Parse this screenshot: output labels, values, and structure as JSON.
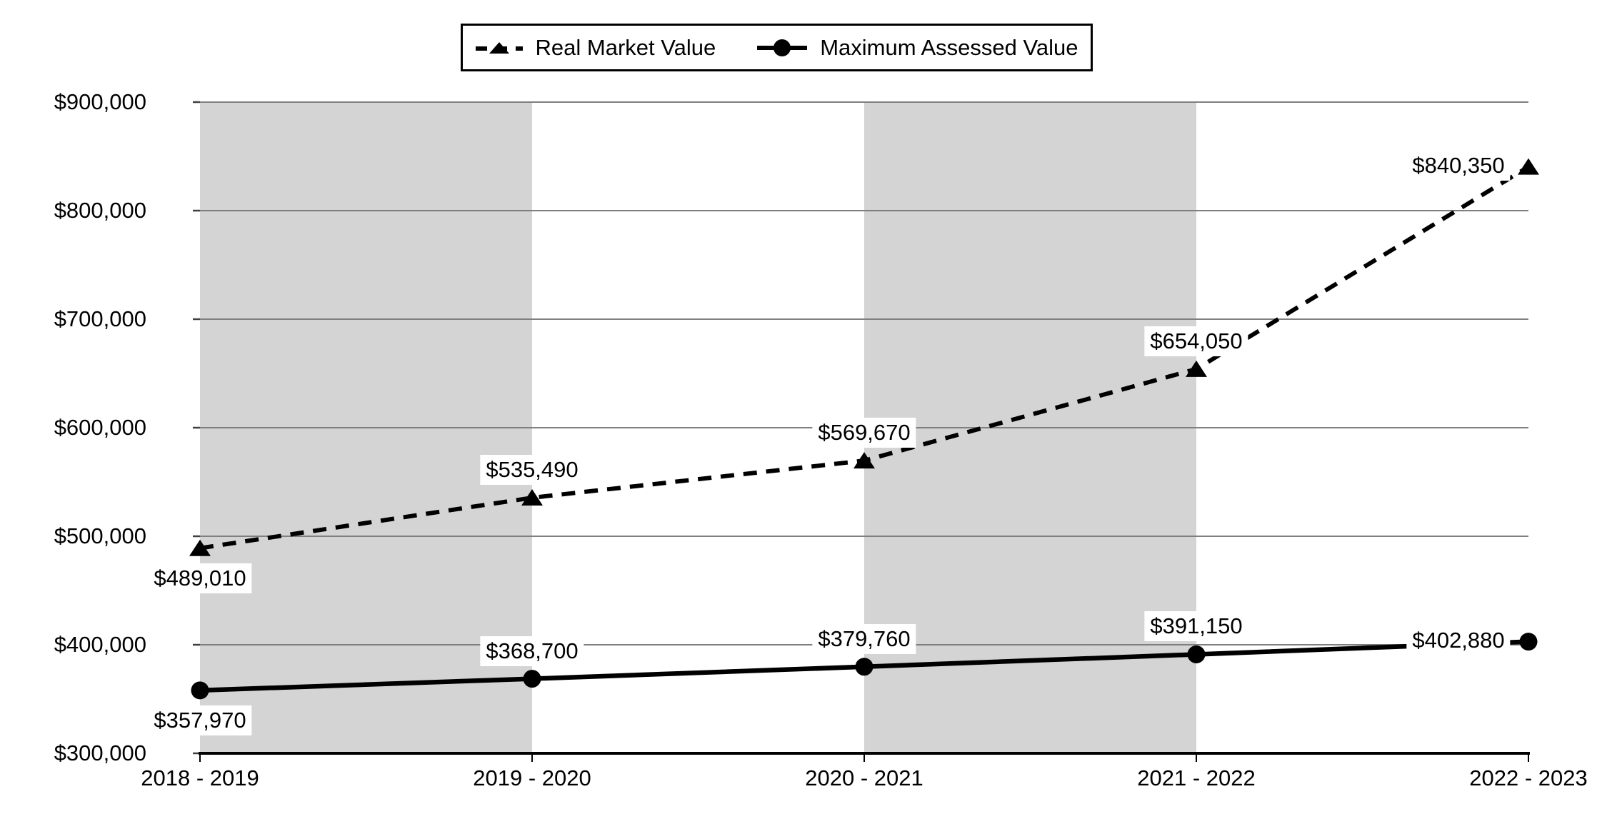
{
  "chart_data": {
    "type": "line",
    "title": "",
    "categories": [
      "2018 - 2019",
      "2019 - 2020",
      "2020 - 2021",
      "2021 - 2022",
      "2022 - 2023"
    ],
    "series": [
      {
        "name": "Real Market Value",
        "line_style": "dashed",
        "marker": "triangle",
        "color": "#000000",
        "values": [
          489010,
          535490,
          569670,
          654050,
          840350
        ],
        "data_labels": [
          "$489,010",
          "$535,490",
          "$569,670",
          "$654,050",
          "$840,350"
        ],
        "label_placements": [
          "below",
          "above",
          "above",
          "above",
          "left"
        ]
      },
      {
        "name": "Maximum Assessed Value",
        "line_style": "solid",
        "marker": "circle",
        "color": "#000000",
        "values": [
          357970,
          368700,
          379760,
          391150,
          402880
        ],
        "data_labels": [
          "$357,970",
          "$368,700",
          "$379,760",
          "$391,150",
          "$402,880"
        ],
        "label_placements": [
          "below",
          "above",
          "above",
          "above",
          "left"
        ]
      }
    ],
    "y_axis": {
      "min": 300000,
      "max": 900000,
      "step": 100000,
      "tick_labels": [
        "$300,000",
        "$400,000",
        "$500,000",
        "$600,000",
        "$700,000",
        "$800,000",
        "$900,000"
      ]
    },
    "x_axis": {
      "tick_labels": [
        "2018 - 2019",
        "2019 - 2020",
        "2020 - 2021",
        "2021 - 2022",
        "2022 - 2023"
      ]
    },
    "plot_bands": [
      {
        "from_category": 0,
        "to_category": 1
      },
      {
        "from_category": 2,
        "to_category": 3
      }
    ],
    "legend": {
      "position": "top",
      "entries": [
        "Real Market Value",
        "Maximum Assessed Value"
      ]
    },
    "grid": "horizontal",
    "colors": {
      "band": "#d4d4d4",
      "gridline": "#7f7f7f",
      "axis": "#000000",
      "tick": "#404040",
      "text": "#000000",
      "label_background": "#ffffff"
    }
  }
}
